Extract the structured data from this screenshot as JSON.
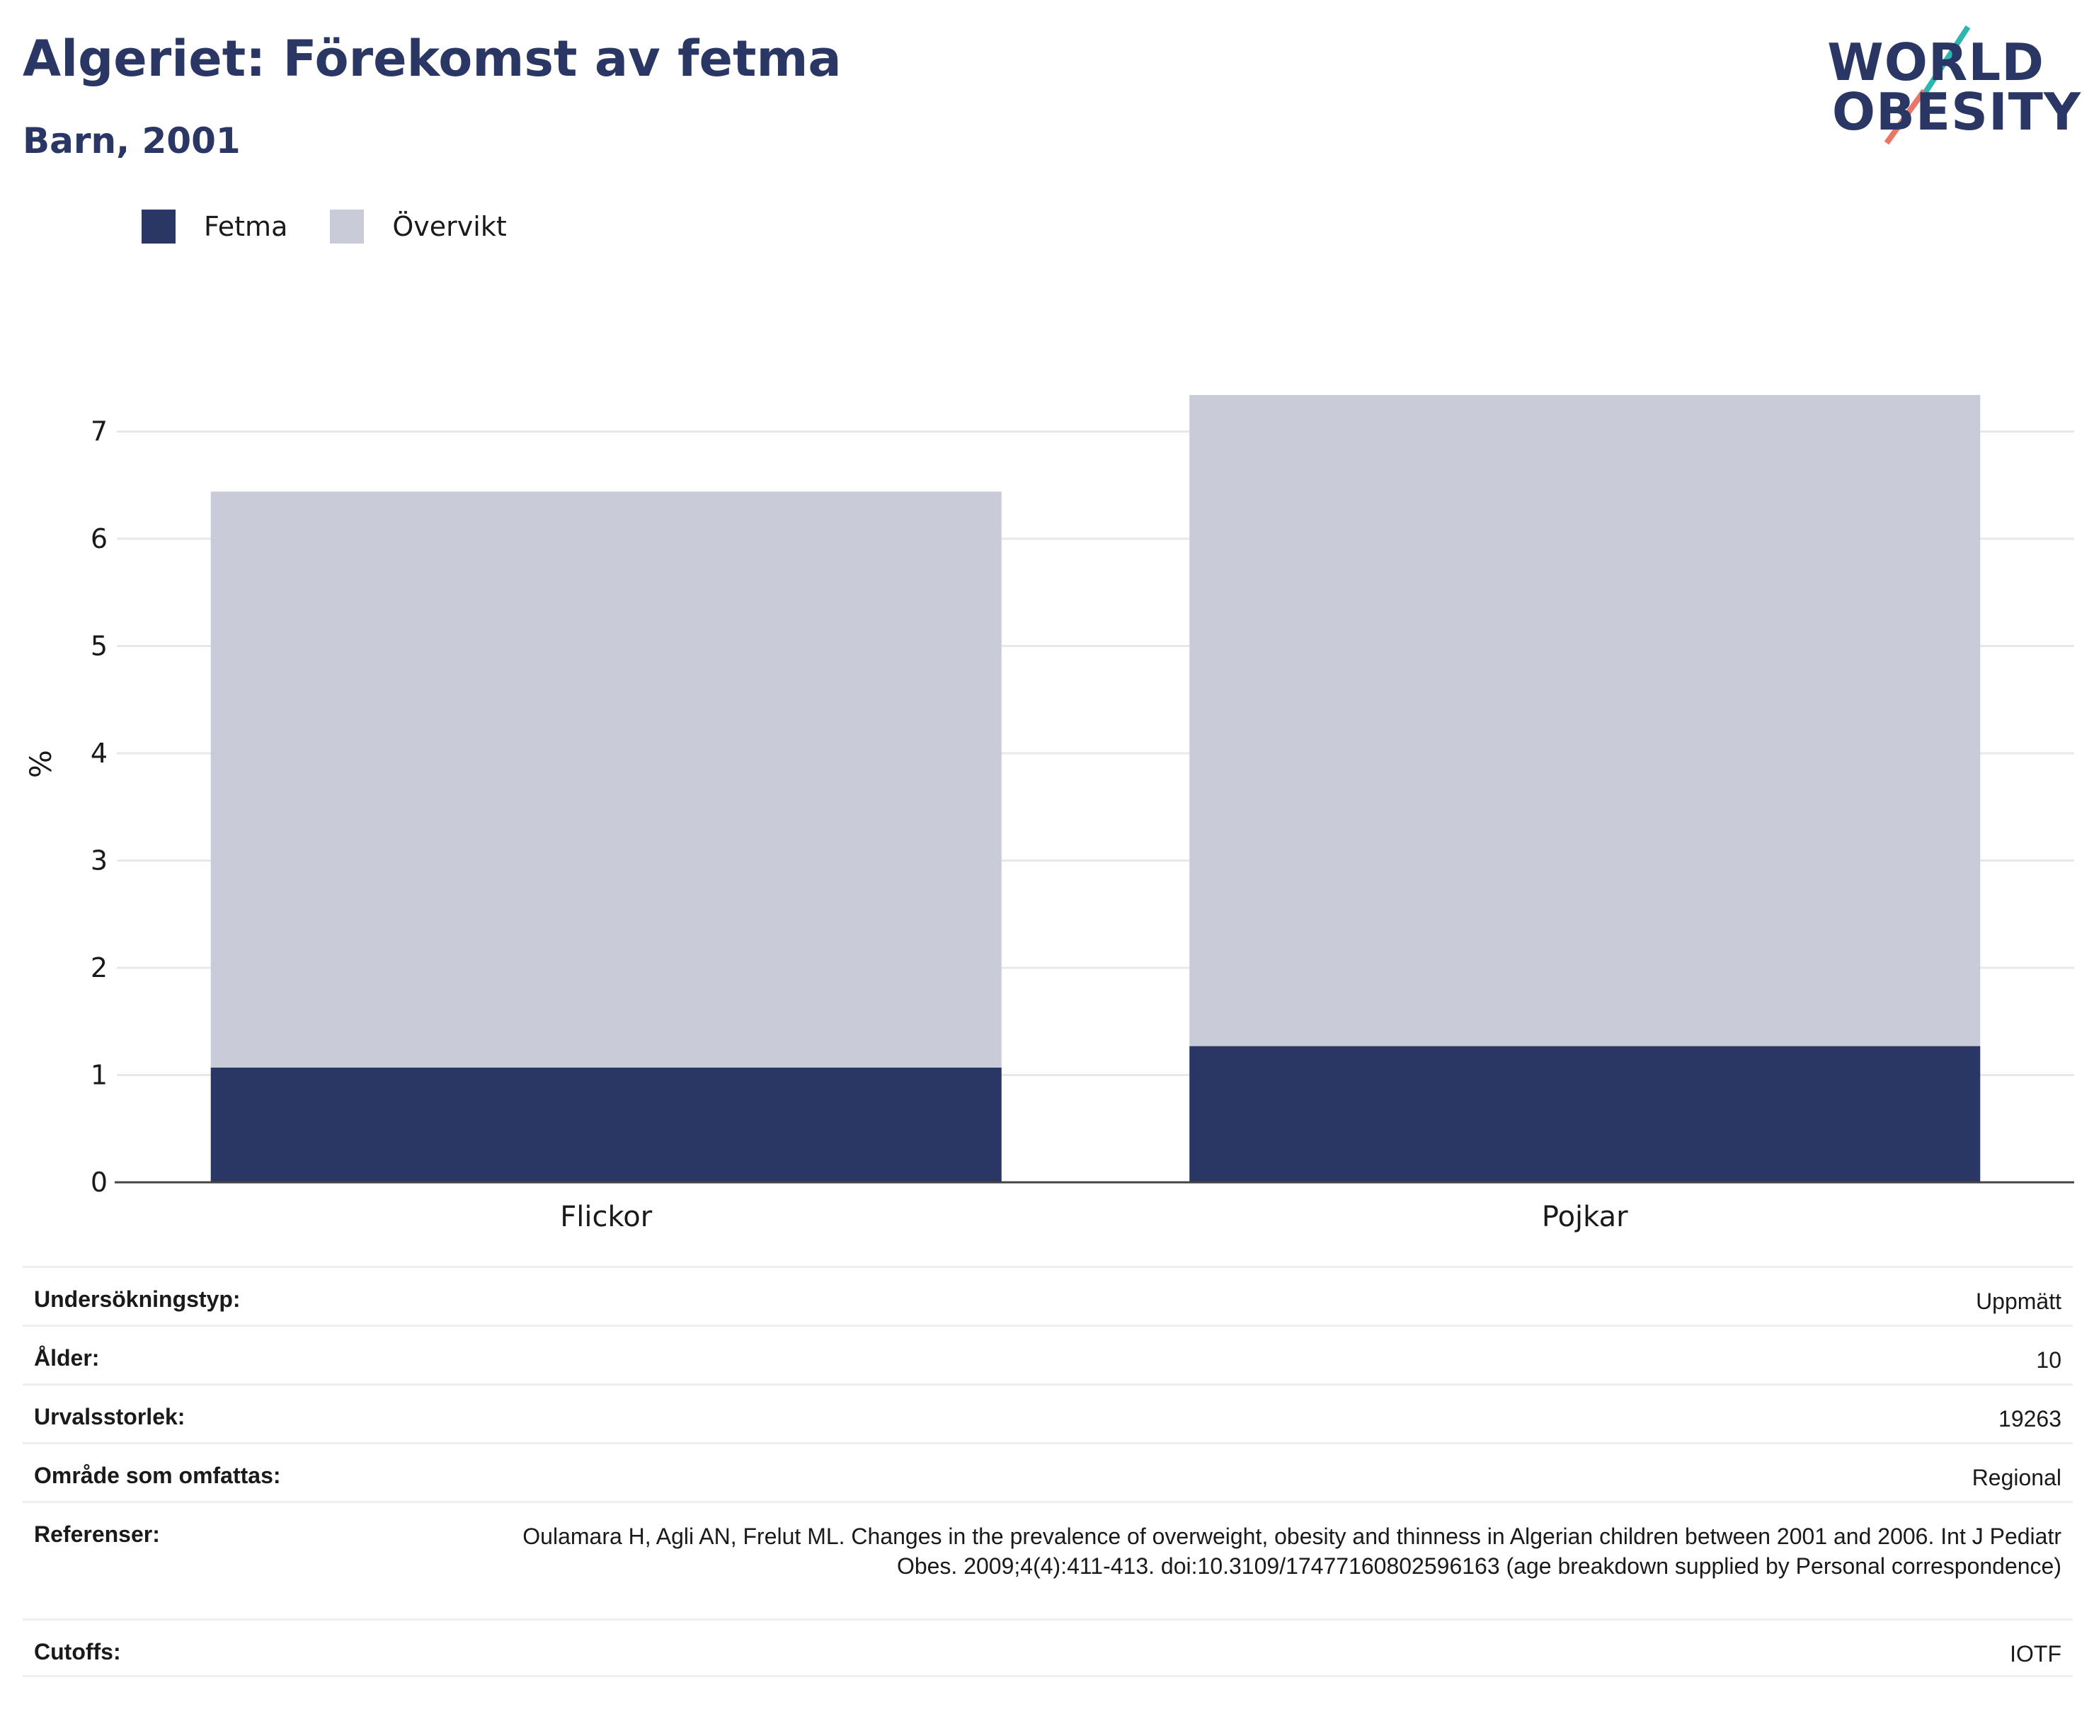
{
  "header": {
    "title": "Algeriet: Förekomst av fetma",
    "subtitle": "Barn, 2001",
    "logo_line1": "WORLD",
    "logo_line2": "OBESITY"
  },
  "colors": {
    "fetma": "#2a3663",
    "overvikt": "#c9ccd8",
    "text": "#2a3663",
    "logo_teal": "#2fb5b0",
    "logo_red": "#e8776a"
  },
  "chart_data": {
    "type": "bar",
    "stacked": true,
    "categories": [
      "Flickor",
      "Pojkar"
    ],
    "series": [
      {
        "name": "Fetma",
        "values": [
          1.07,
          1.27
        ]
      },
      {
        "name": "Övervikt",
        "values": [
          5.37,
          6.07
        ]
      }
    ],
    "ylabel": "%",
    "xlabel": "",
    "ylim": [
      0,
      7.5
    ],
    "yticks": [
      0,
      1,
      2,
      3,
      4,
      5,
      6,
      7
    ],
    "grid": true,
    "legend_position": "top-left"
  },
  "details": [
    {
      "key": "Undersökningstyp:",
      "value": "Uppmätt"
    },
    {
      "key": "Ålder:",
      "value": "10"
    },
    {
      "key": "Urvalsstorlek:",
      "value": "19263"
    },
    {
      "key": "Område som omfattas:",
      "value": "Regional"
    },
    {
      "key": "Referenser:",
      "value": "Oulamara H, Agli AN, Frelut ML. Changes in the prevalence of overweight, obesity and thinness in Algerian children between 2001 and 2006. Int J Pediatr Obes. 2009;4(4):411-413. doi:10.3109/17477160802596163 (age breakdown supplied by Personal correspondence)"
    },
    {
      "key": "Cutoffs:",
      "value": "IOTF"
    }
  ]
}
